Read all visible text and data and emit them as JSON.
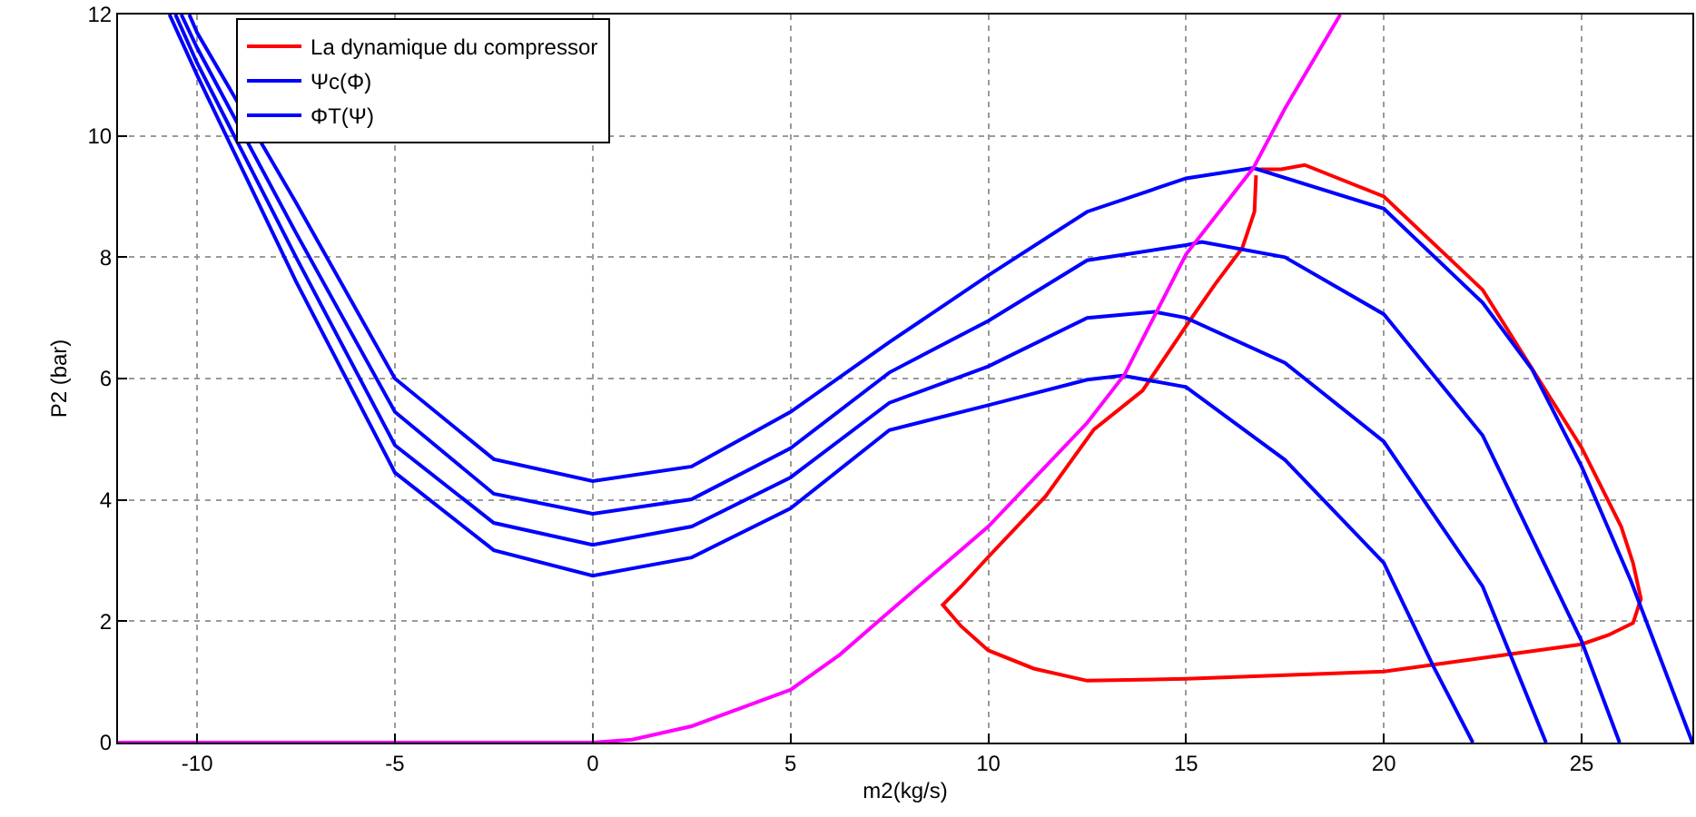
{
  "chart_data": {
    "type": "line",
    "xlabel": "m2(kg/s)",
    "ylabel": "P2 (bar)",
    "xlim": [
      -12,
      27.8
    ],
    "ylim": [
      0,
      12
    ],
    "xticks": [
      -10,
      -5,
      0,
      5,
      10,
      15,
      20,
      25
    ],
    "yticks": [
      0,
      2,
      4,
      6,
      8,
      10,
      12
    ],
    "grid": true,
    "legend": "top left",
    "marker": "none",
    "line_style": "solid",
    "series": [
      {
        "name": "La dynamique du compressor",
        "color": "#ff0000",
        "x": [
          16.8,
          17.4,
          18.0,
          20,
          22.5,
          25,
          26,
          26.3,
          26.5,
          26.3,
          25.67,
          25,
          20,
          15,
          12.5,
          11.15,
          10,
          9.31,
          8.85,
          9.31,
          10,
          11.45,
          12.67,
          13.9,
          15.1,
          15.73,
          16.42,
          16.73,
          16.77
        ],
        "values": [
          9.45,
          9.45,
          9.52,
          9.0,
          7.46,
          4.86,
          3.56,
          2.96,
          2.37,
          1.97,
          1.77,
          1.62,
          1.17,
          1.05,
          1.02,
          1.22,
          1.52,
          1.92,
          2.27,
          2.57,
          3.06,
          4.06,
          5.16,
          5.8,
          6.96,
          7.55,
          8.15,
          8.75,
          9.35
        ]
      },
      {
        "name": "Ψc(Φ)",
        "color": "#0000ff",
        "x": [
          -10.2,
          -10,
          -7.5,
          -5,
          -2.5,
          0,
          2.5,
          5,
          7.5,
          10,
          12.5,
          15,
          16.7,
          20,
          22.5,
          23.75,
          25,
          26.25,
          27.8
        ],
        "values": [
          12,
          11.7,
          8.9,
          6.0,
          4.67,
          4.31,
          4.55,
          5.45,
          6.6,
          7.7,
          8.75,
          9.3,
          9.47,
          8.8,
          7.25,
          6.15,
          4.55,
          2.66,
          0
        ]
      },
      {
        "name": "ΦT(Ψ)",
        "color": "#0000ff",
        "x": [
          -10.4,
          -10,
          -7.5,
          -5,
          -2.5,
          0,
          2.5,
          5,
          7.5,
          10,
          12.5,
          15,
          15.4,
          17.5,
          20,
          22.5,
          25,
          25.96
        ],
        "values": [
          12,
          11.45,
          8.4,
          5.45,
          4.1,
          3.77,
          4.01,
          4.85,
          6.1,
          6.95,
          7.95,
          8.2,
          8.25,
          8.0,
          7.06,
          5.06,
          1.67,
          0
        ]
      },
      {
        "color": "#0000ff",
        "x": [
          -10.55,
          -10,
          -7.5,
          -5,
          -2.5,
          0,
          2.5,
          5,
          7.5,
          10,
          12.5,
          14.2,
          15,
          17.5,
          20,
          22.5,
          24.1
        ],
        "values": [
          12,
          11.2,
          8.0,
          4.9,
          3.62,
          3.26,
          3.56,
          4.37,
          5.6,
          6.2,
          7.0,
          7.1,
          7.0,
          6.26,
          4.96,
          2.57,
          0
        ]
      },
      {
        "color": "#0000ff",
        "x": [
          -10.7,
          -10,
          -7.5,
          -5,
          -2.5,
          0,
          2.5,
          5,
          7.5,
          10,
          12.5,
          13.4,
          15,
          17.5,
          20,
          21.25,
          22.25
        ],
        "values": [
          12,
          11.0,
          7.6,
          4.45,
          3.17,
          2.75,
          3.05,
          3.86,
          5.15,
          5.56,
          5.98,
          6.05,
          5.86,
          4.66,
          2.96,
          1.26,
          0
        ]
      },
      {
        "color": "#ff00ff",
        "x": [
          -12,
          0,
          1,
          2.5,
          5,
          6.25,
          7.5,
          10,
          12.5,
          13.44,
          15,
          16.7,
          17.5,
          18.9
        ],
        "values": [
          0,
          0,
          0.05,
          0.27,
          0.87,
          1.45,
          2.16,
          3.56,
          5.27,
          6.06,
          8.05,
          9.47,
          10.45,
          12.0
        ]
      }
    ]
  }
}
